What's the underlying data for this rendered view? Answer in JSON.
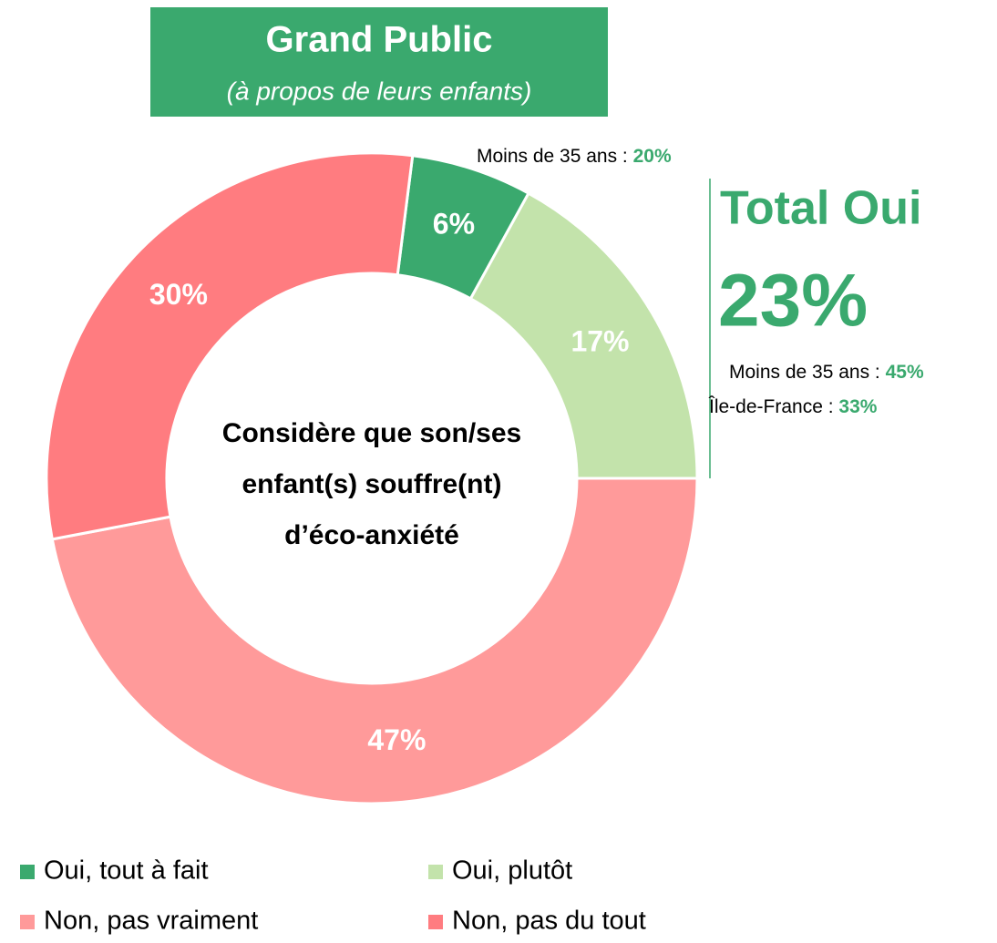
{
  "chart_data": {
    "type": "donut",
    "title": "Grand Public",
    "subtitle": "(à propos de leurs enfants)",
    "center_text": [
      "Considère que son/ses",
      "enfant(s) souffre(nt)",
      "d’éco-anxiété"
    ],
    "categories": [
      "Oui, tout à fait",
      "Oui, plutôt",
      "Non, pas vraiment",
      "Non, pas du tout"
    ],
    "values": [
      6,
      17,
      47,
      30
    ],
    "value_labels": [
      "6%",
      "17%",
      "47%",
      "30%"
    ],
    "colors": [
      "#3aa96e",
      "#c3e3ab",
      "#ff9a9a",
      "#ff7c80"
    ],
    "annotations": {
      "slice_note": {
        "label": "Moins de 35 ans : ",
        "value": "20%"
      },
      "total_title": "Total Oui",
      "total_value": "23%",
      "total_notes": [
        {
          "label": "Moins de 35 ans : ",
          "value": "45%"
        },
        {
          "label": "Île-de-France : ",
          "value": "33%"
        }
      ]
    }
  }
}
